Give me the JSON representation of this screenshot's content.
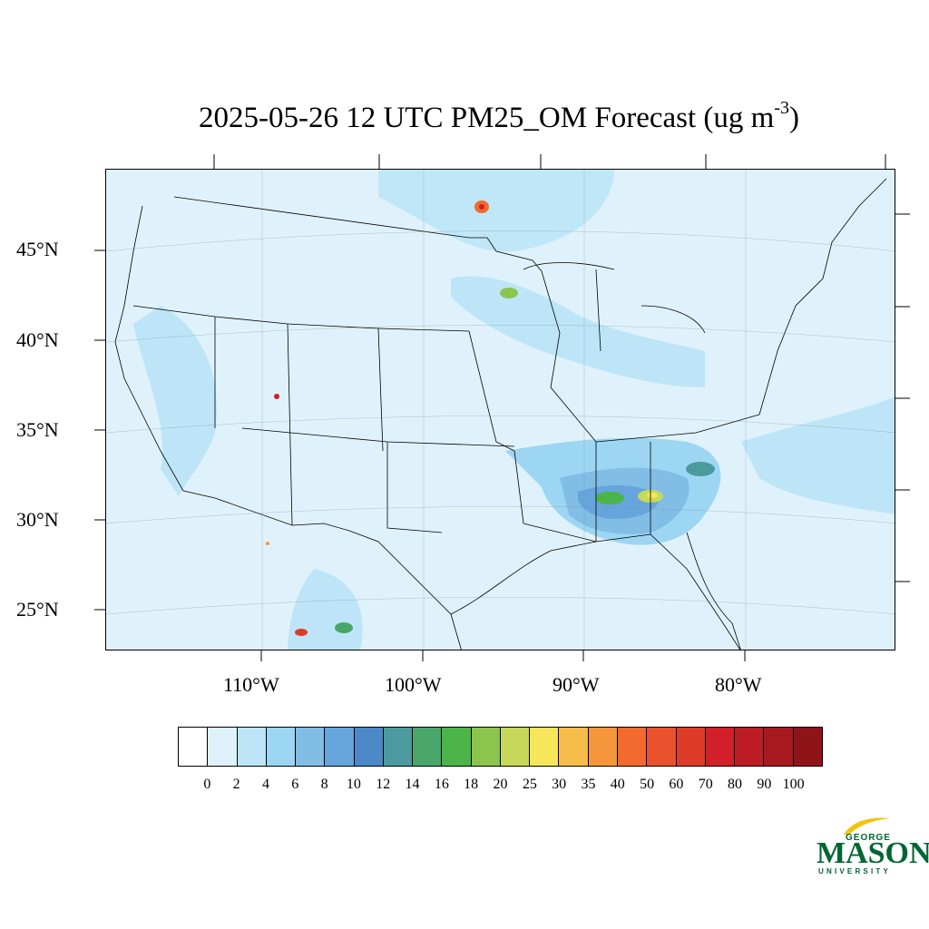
{
  "title": {
    "text": "2025-05-26 12 UTC PM25_OM Forecast (ug m",
    "superscript": "-3",
    "closing": ")"
  },
  "axes": {
    "lat_labels": [
      "45°N",
      "40°N",
      "35°N",
      "30°N",
      "25°N"
    ],
    "lon_labels": [
      "110°W",
      "100°W",
      "90°W",
      "80°W"
    ]
  },
  "colorbar": {
    "colors": [
      "#ffffff",
      "#dff2fb",
      "#bde5f7",
      "#9dd6f3",
      "#82bde6",
      "#66a5db",
      "#4b89c8",
      "#4b9aa0",
      "#49a66a",
      "#4bb549",
      "#8bc54d",
      "#c6d95a",
      "#f7e55c",
      "#f7bd4a",
      "#f5963c",
      "#f26a2e",
      "#e8522c",
      "#de3b29",
      "#d21f2a",
      "#bd1c24",
      "#a8191f",
      "#8f1419"
    ],
    "labels": [
      "0",
      "2",
      "4",
      "6",
      "8",
      "10",
      "12",
      "14",
      "16",
      "18",
      "20",
      "25",
      "30",
      "35",
      "40",
      "50",
      "60",
      "70",
      "80",
      "90",
      "100"
    ]
  },
  "logo": {
    "line1": "GEORGE",
    "line2": "MASON",
    "line3": "UNIVERSITY",
    "color": "#006633",
    "accent": "#f2c40f"
  }
}
